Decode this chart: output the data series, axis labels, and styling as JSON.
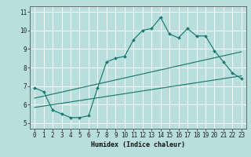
{
  "title": "",
  "xlabel": "Humidex (Indice chaleur)",
  "ylabel": "",
  "bg_color": "#b8dede",
  "grid_color": "#d4eeee",
  "line_color": "#1a7a6e",
  "xlim": [
    -0.5,
    23.5
  ],
  "ylim": [
    4.7,
    11.3
  ],
  "xticks": [
    0,
    1,
    2,
    3,
    4,
    5,
    6,
    7,
    8,
    9,
    10,
    11,
    12,
    13,
    14,
    15,
    16,
    17,
    18,
    19,
    20,
    21,
    22,
    23
  ],
  "yticks": [
    5,
    6,
    7,
    8,
    9,
    10,
    11
  ],
  "series": [
    {
      "x": [
        0,
        1,
        2,
        3,
        4,
        5,
        6,
        7,
        8,
        9,
        10,
        11,
        12,
        13,
        14,
        15,
        16,
        17,
        18,
        19,
        20,
        21,
        22,
        23
      ],
      "y": [
        6.9,
        6.7,
        5.7,
        5.5,
        5.3,
        5.3,
        5.4,
        6.9,
        8.3,
        8.5,
        8.6,
        9.5,
        10.0,
        10.1,
        10.7,
        9.8,
        9.6,
        10.1,
        9.7,
        9.7,
        8.9,
        8.3,
        7.7,
        7.4
      ]
    },
    {
      "x": [
        0,
        23
      ],
      "y": [
        5.85,
        7.55
      ]
    },
    {
      "x": [
        0,
        23
      ],
      "y": [
        6.35,
        8.85
      ]
    }
  ]
}
